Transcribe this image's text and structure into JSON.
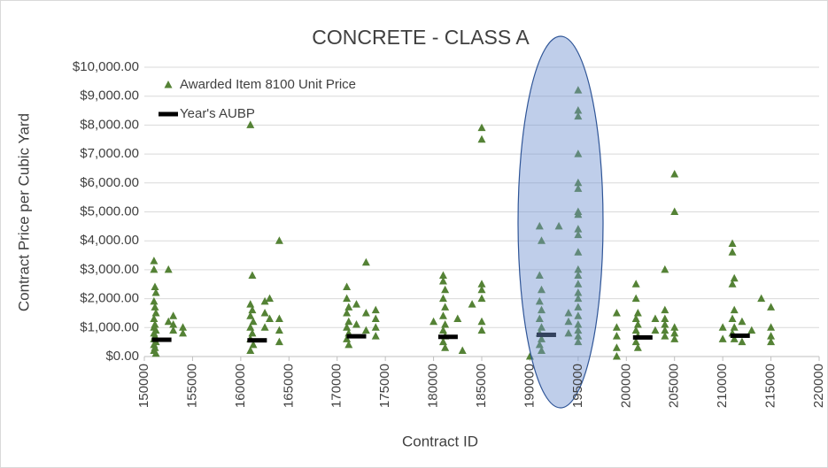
{
  "chart_data": {
    "type": "scatter",
    "title": "CONCRETE - CLASS A",
    "x_label": "Contract ID",
    "y_label": "Contract Price per Cubic Yard",
    "xlim": [
      150000,
      220000
    ],
    "xticks": [
      150000,
      155000,
      160000,
      165000,
      170000,
      175000,
      180000,
      185000,
      190000,
      195000,
      200000,
      205000,
      210000,
      215000,
      220000
    ],
    "ylim": [
      0,
      10000
    ],
    "yticks": [
      {
        "value": 0,
        "label": "$0.00"
      },
      {
        "value": 1000,
        "label": "$1,000.00"
      },
      {
        "value": 2000,
        "label": "$2,000.00"
      },
      {
        "value": 3000,
        "label": "$3,000.00"
      },
      {
        "value": 4000,
        "label": "$4,000.00"
      },
      {
        "value": 5000,
        "label": "$5,000.00"
      },
      {
        "value": 6000,
        "label": "$6,000.00"
      },
      {
        "value": 7000,
        "label": "$7,000.00"
      },
      {
        "value": 8000,
        "label": "$8,000.00"
      },
      {
        "value": 9000,
        "label": "$9,000.00"
      },
      {
        "value": 10000,
        "label": "$10,000.00"
      }
    ],
    "grid": true,
    "legend": "top-left",
    "series": [
      {
        "name": "Awarded Item 8100 Unit Price",
        "color": "#548235",
        "marker": "triangle",
        "x": [
          151000,
          151000,
          151100,
          151200,
          151000,
          151100,
          151200,
          151000,
          151100,
          151000,
          151200,
          151000,
          151100,
          151000,
          151200,
          151000,
          151100,
          151000,
          151200,
          152500,
          152500,
          153000,
          153000,
          153000,
          154000,
          154000,
          161000,
          161200,
          161000,
          161200,
          161000,
          161300,
          161000,
          161200,
          161000,
          161300,
          161000,
          162500,
          162500,
          162500,
          163000,
          163000,
          164000,
          164000,
          164000,
          164000,
          171000,
          171000,
          171200,
          171000,
          171200,
          171000,
          171200,
          171000,
          171200,
          172000,
          172000,
          173000,
          173000,
          173000,
          174000,
          174000,
          174000,
          174000,
          181000,
          181000,
          181200,
          181000,
          181200,
          181000,
          181200,
          181000,
          181200,
          181000,
          181200,
          180000,
          182500,
          183000,
          184000,
          185000,
          185000,
          185000,
          185000,
          185000,
          185000,
          185000,
          191000,
          191200,
          191000,
          191200,
          191000,
          191200,
          191000,
          191200,
          191000,
          191200,
          191000,
          191200,
          190000,
          193000,
          194000,
          194000,
          194000,
          195000,
          195000,
          195000,
          195000,
          195000,
          195000,
          195000,
          195000,
          195000,
          195000,
          195000,
          195000,
          195000,
          195000,
          195000,
          195000,
          195000,
          195000,
          195000,
          195000,
          195000,
          195000,
          199000,
          199000,
          199000,
          199000,
          199000,
          201000,
          201000,
          201200,
          201000,
          201200,
          201000,
          201200,
          201000,
          201200,
          203000,
          203000,
          204000,
          204000,
          204000,
          204000,
          204000,
          204000,
          205000,
          205000,
          205000,
          205000,
          205000,
          210000,
          210000,
          211000,
          211000,
          211200,
          211000,
          211200,
          211000,
          211200,
          211000,
          211200,
          212000,
          212000,
          213000,
          214000,
          215000,
          215000,
          215000,
          215000
        ],
        "values": [
          3300,
          3000,
          2400,
          2200,
          1900,
          1700,
          1500,
          1300,
          1100,
          1000,
          900,
          800,
          700,
          600,
          500,
          400,
          300,
          200,
          100,
          3000,
          1200,
          1400,
          1100,
          900,
          1000,
          800,
          8000,
          2800,
          1800,
          1600,
          1400,
          1200,
          1000,
          800,
          600,
          400,
          200,
          1900,
          1500,
          1000,
          2000,
          1300,
          4000,
          1300,
          900,
          500,
          2400,
          2000,
          1700,
          1500,
          1200,
          1000,
          800,
          600,
          400,
          1800,
          1100,
          3250,
          1500,
          900,
          1600,
          1300,
          1000,
          700,
          2800,
          2600,
          2300,
          2000,
          1700,
          1400,
          1100,
          900,
          700,
          500,
          300,
          1200,
          1300,
          200,
          1800,
          7900,
          7500,
          2500,
          2300,
          2000,
          1200,
          900,
          4500,
          4000,
          2800,
          2300,
          1900,
          1600,
          1300,
          1000,
          800,
          600,
          400,
          200,
          0,
          4500,
          1500,
          1200,
          800,
          9200,
          8500,
          8300,
          7000,
          6000,
          5800,
          5000,
          4900,
          4400,
          4200,
          3600,
          3000,
          2800,
          2500,
          2200,
          2000,
          1700,
          1400,
          1100,
          900,
          700,
          500,
          1500,
          1000,
          700,
          300,
          0,
          2500,
          2000,
          1500,
          1300,
          1100,
          900,
          700,
          500,
          300,
          1300,
          900,
          3000,
          1600,
          1300,
          1100,
          900,
          700,
          6300,
          5000,
          1000,
          800,
          600,
          1000,
          600,
          3900,
          3600,
          2700,
          2500,
          1600,
          1300,
          1000,
          800,
          600,
          1200,
          500,
          900,
          2000,
          1700,
          1000,
          700,
          500
        ]
      },
      {
        "name": "Year's AUBP",
        "color": "#000000",
        "marker": "dash",
        "x": [
          151800,
          161700,
          172000,
          181500,
          191700,
          201700,
          211800
        ],
        "values": [
          580,
          560,
          700,
          680,
          750,
          660,
          720
        ]
      }
    ]
  }
}
